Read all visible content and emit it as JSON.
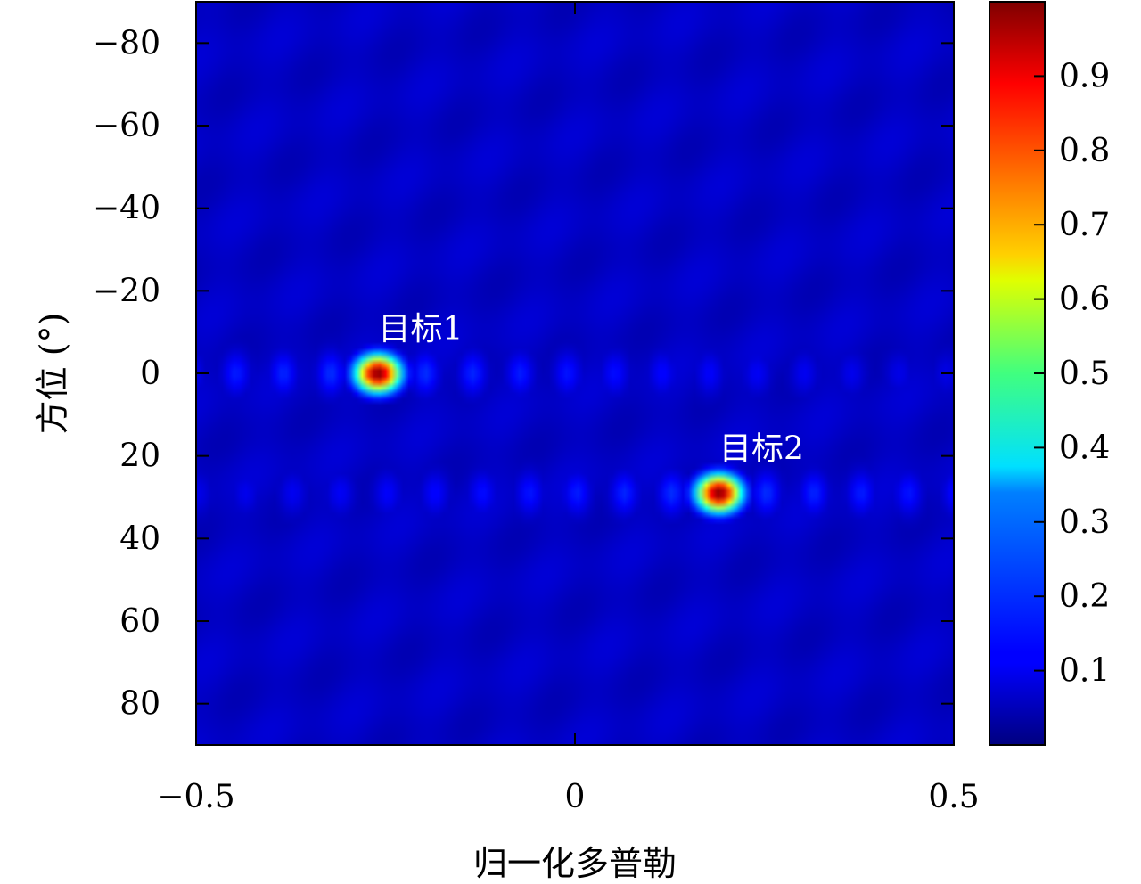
{
  "chart_data": {
    "type": "heatmap",
    "title": "",
    "xlabel": "归一化多普勒",
    "ylabel": "方位 (°)",
    "xlim": [
      -0.5,
      0.5
    ],
    "ylim": [
      -90,
      90
    ],
    "y_inverted": true,
    "x_ticks": [
      -0.5,
      0,
      0.5
    ],
    "x_tick_labels": [
      "−0.5",
      "0",
      "0.5"
    ],
    "y_ticks": [
      -80,
      -60,
      -40,
      -20,
      0,
      20,
      40,
      60,
      80
    ],
    "y_tick_labels": [
      "−80",
      "−60",
      "−40",
      "−20",
      "0",
      "20",
      "40",
      "60",
      "80"
    ],
    "colormap": "jet",
    "color_range": [
      0,
      1
    ],
    "colorbar": {
      "ticks": [
        0.1,
        0.2,
        0.3,
        0.4,
        0.5,
        0.6,
        0.7,
        0.8,
        0.9
      ],
      "tick_labels": [
        "0.1",
        "0.2",
        "0.3",
        "0.4",
        "0.5",
        "0.6",
        "0.7",
        "0.8",
        "0.9"
      ],
      "placement": "right"
    },
    "grid": false,
    "targets": [
      {
        "label": "目标1",
        "doppler": -0.26,
        "azimuth": 0,
        "peak": 1.0
      },
      {
        "label": "目标2",
        "doppler": 0.19,
        "azimuth": 29,
        "peak": 1.0
      }
    ],
    "sidelobe_spacing_doppler": 0.0625,
    "sidelobe_level": 0.13,
    "background_level": 0.05
  }
}
